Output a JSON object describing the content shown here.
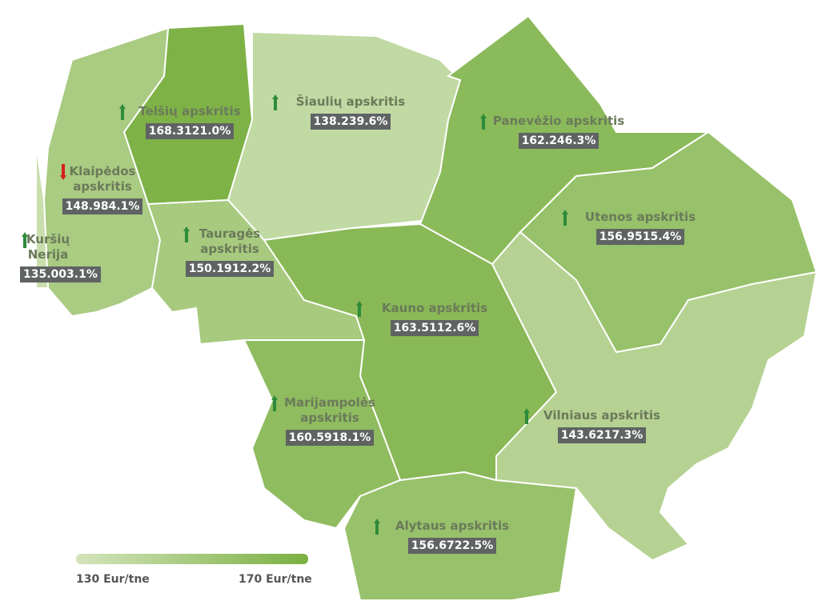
{
  "map": {
    "regions": [
      {
        "name": "Telšių apskritis",
        "value": 168.31,
        "change": 21.0,
        "change_label": "21.0%",
        "direction": "up"
      },
      {
        "name": "Šiaulių apskritis",
        "value": 138.23,
        "change": 9.6,
        "change_label": "9.6%",
        "direction": "up"
      },
      {
        "name": "Panevėžio apskritis",
        "value": 162.24,
        "change": 6.3,
        "change_label": "6.3%",
        "direction": "up"
      },
      {
        "name": "Klaipėdos apskritis",
        "value": 148.98,
        "change": 4.1,
        "change_label": "4.1%",
        "direction": "down"
      },
      {
        "name": "Kuršių Nerija",
        "value": 135,
        "value_label": "135.00",
        "change": 3.1,
        "change_label": "3.1%",
        "direction": "up"
      },
      {
        "name": "Utenos apskritis",
        "value": 156.95,
        "change": 15.4,
        "change_label": "15.4%",
        "direction": "up"
      },
      {
        "name": "Tauragės apskritis",
        "value": 150.19,
        "change": 12.2,
        "change_label": "12.2%",
        "direction": "up"
      },
      {
        "name": "Kauno apskritis",
        "value": 163.51,
        "change": 12.6,
        "change_label": "12.6%",
        "direction": "up"
      },
      {
        "name": "Marijampolės apskritis",
        "value": 160.59,
        "change": 18.1,
        "change_label": "18.1%",
        "direction": "up"
      },
      {
        "name": "Vilniaus apskritis",
        "value": 143.62,
        "change": 17.3,
        "change_label": "17.3%",
        "direction": "up"
      },
      {
        "name": "Alytaus apskritis",
        "value": 156.67,
        "change": 22.5,
        "change_label": "22.5%",
        "direction": "up"
      }
    ],
    "legend": {
      "min": 130,
      "max": 170,
      "min_label": "130 Eur/tne",
      "max_label": "170 Eur/tne"
    }
  }
}
